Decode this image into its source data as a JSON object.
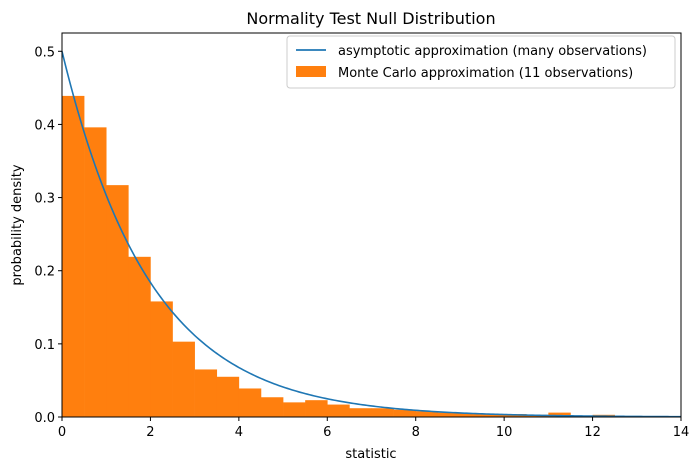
{
  "chart_data": {
    "type": "bar",
    "title": "Normality Test Null Distribution",
    "xlabel": "statistic",
    "ylabel": "probability density",
    "xlim": [
      0,
      14
    ],
    "ylim": [
      0,
      0.525
    ],
    "xticks": [
      0,
      2,
      4,
      6,
      8,
      10,
      12,
      14
    ],
    "yticks": [
      0.0,
      0.1,
      0.2,
      0.3,
      0.4,
      0.5
    ],
    "xtick_labels": [
      "0",
      "2",
      "4",
      "6",
      "8",
      "10",
      "12",
      "14"
    ],
    "ytick_labels": [
      "0.0",
      "0.1",
      "0.2",
      "0.3",
      "0.4",
      "0.5"
    ],
    "grid": false,
    "legend_position": "top-right",
    "series": [
      {
        "name": "asymptotic approximation (many observations)",
        "type": "line",
        "color": "#1f77b4",
        "function": "0.5*exp(-x/2)",
        "x": [
          0,
          0.5,
          1,
          1.5,
          2,
          2.5,
          3,
          3.5,
          4,
          4.5,
          5,
          5.5,
          6,
          6.5,
          7,
          7.5,
          8,
          8.5,
          9,
          9.5,
          10,
          10.5,
          11,
          11.5,
          12,
          12.5,
          13,
          13.5,
          14
        ],
        "values": [
          0.5,
          0.389,
          0.303,
          0.236,
          0.184,
          0.143,
          0.112,
          0.087,
          0.068,
          0.053,
          0.041,
          0.032,
          0.025,
          0.019,
          0.015,
          0.012,
          0.009,
          0.007,
          0.006,
          0.004,
          0.003,
          0.003,
          0.002,
          0.002,
          0.001,
          0.001,
          0.001,
          0.001,
          0.0005
        ]
      },
      {
        "name": "Monte Carlo approximation (11 observations)",
        "type": "histogram",
        "color": "#ff7f0e",
        "bin_width": 0.5,
        "bin_starts": [
          0,
          0.5,
          1,
          1.5,
          2,
          2.5,
          3,
          3.5,
          4,
          4.5,
          5,
          5.5,
          6,
          6.5,
          7,
          7.5,
          8,
          8.5,
          9,
          9.5,
          10,
          10.5,
          11,
          11.5,
          12,
          12.5,
          13,
          13.5
        ],
        "values": [
          0.439,
          0.396,
          0.317,
          0.219,
          0.158,
          0.103,
          0.065,
          0.055,
          0.039,
          0.027,
          0.02,
          0.023,
          0.017,
          0.012,
          0.012,
          0.01,
          0.008,
          0.006,
          0.005,
          0.004,
          0.004,
          0.003,
          0.006,
          0.002,
          0.003,
          0.001,
          0.001,
          0.001
        ]
      }
    ]
  }
}
